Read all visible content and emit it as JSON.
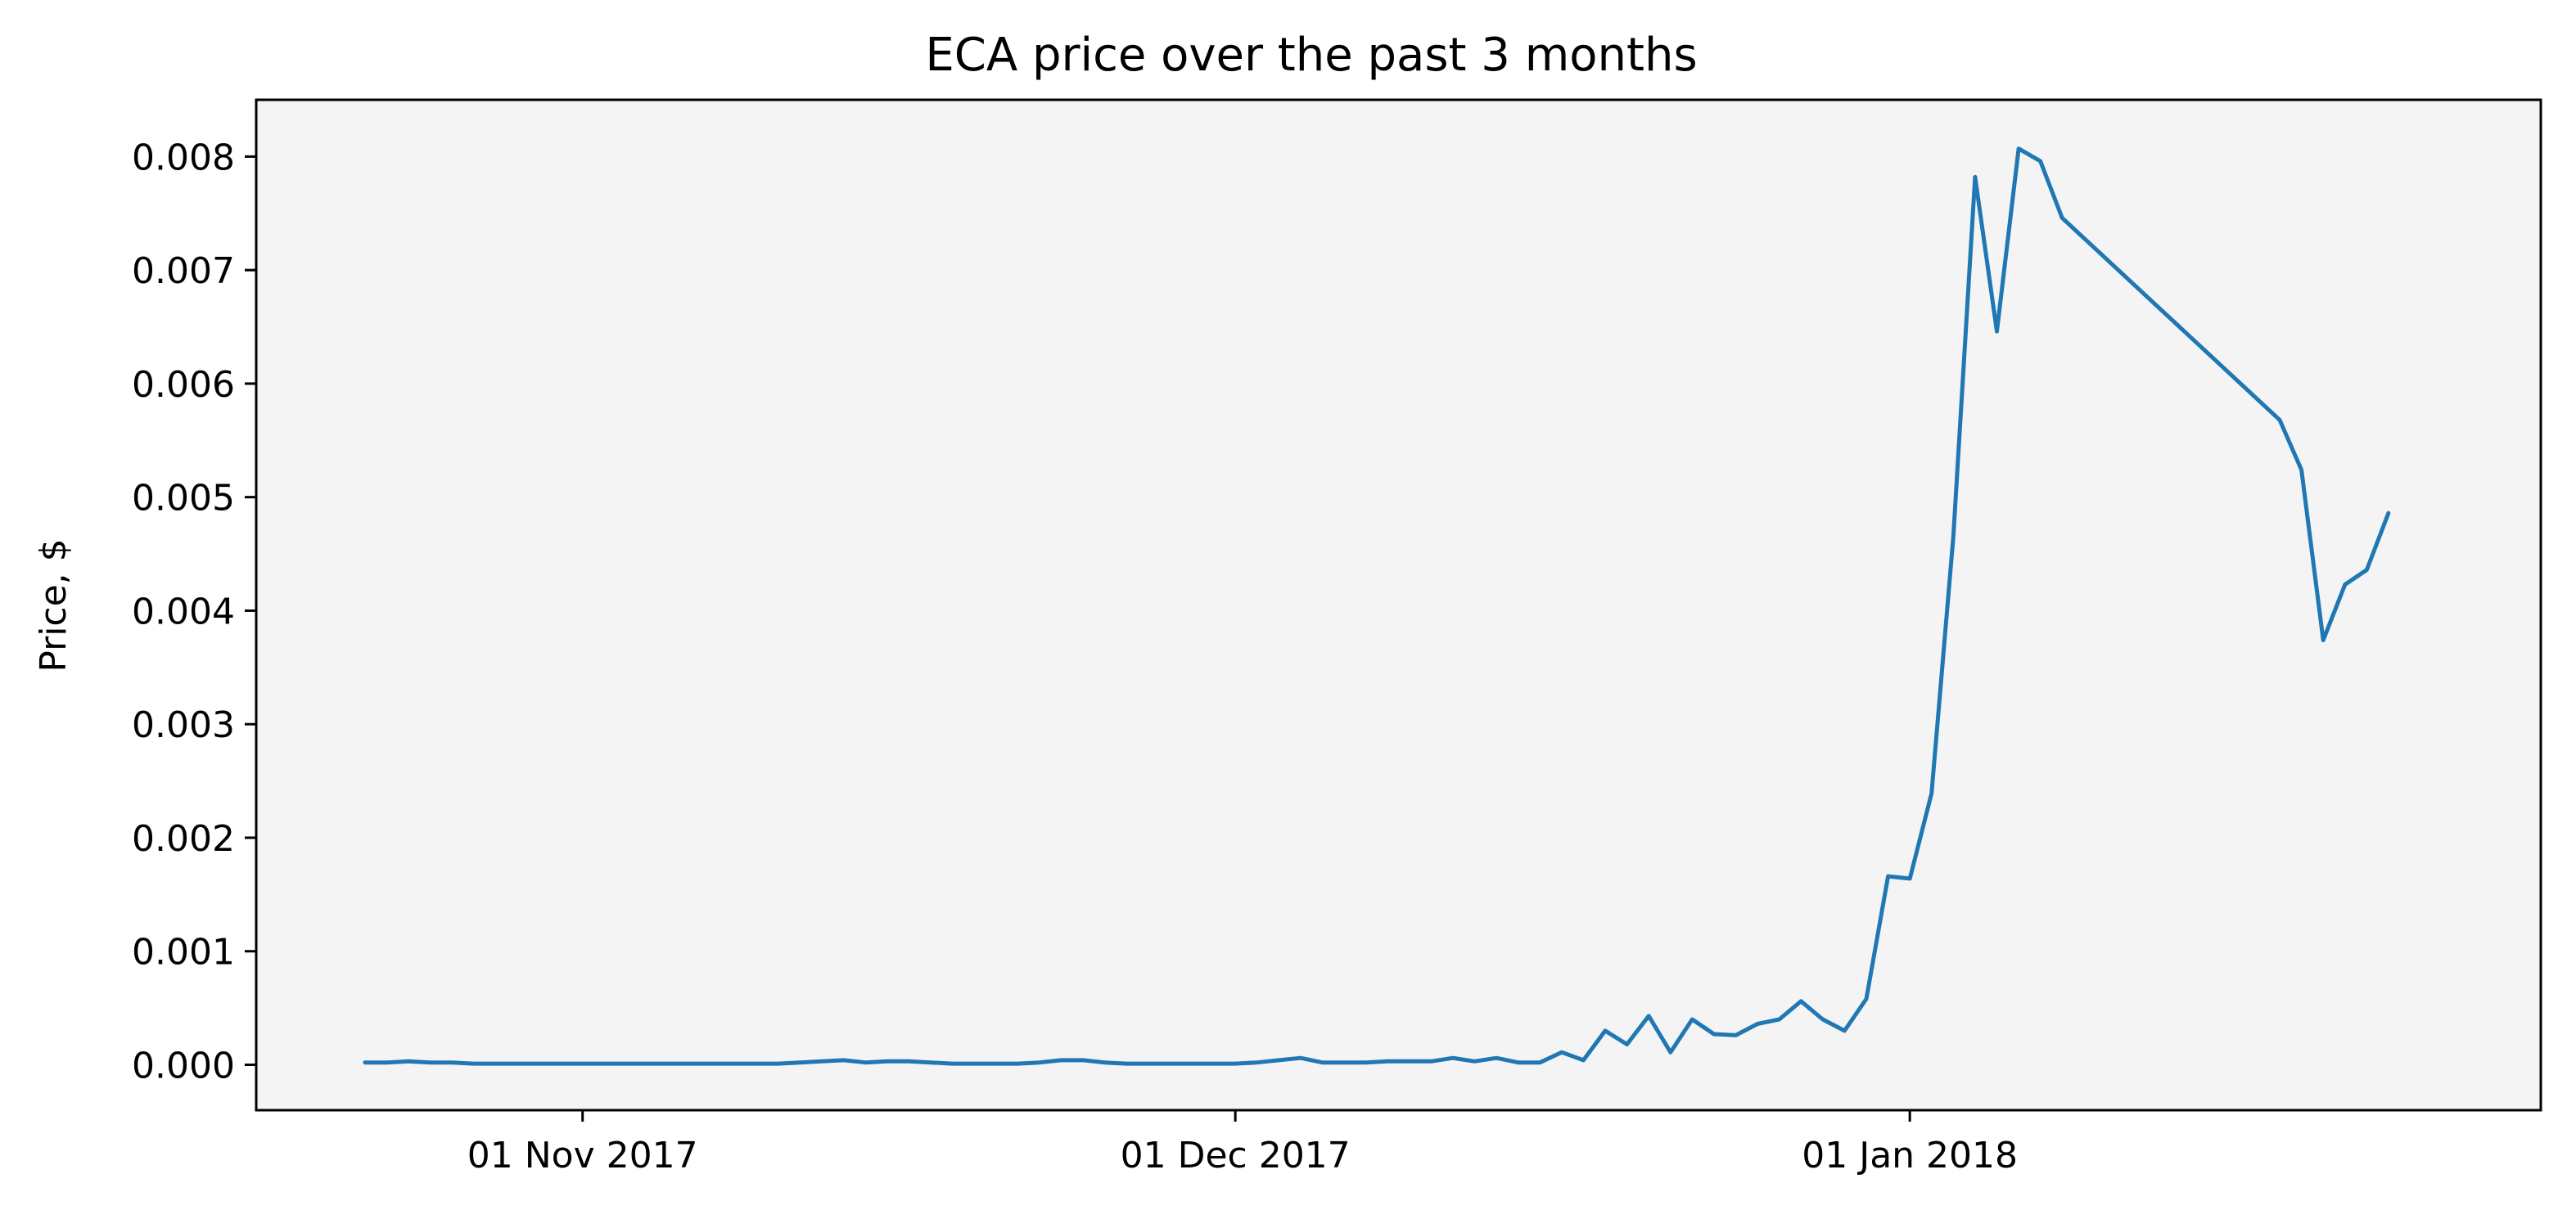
{
  "chart_data": {
    "type": "line",
    "title": "ECA price over the past 3 months",
    "xlabel": "",
    "ylabel": "Price, $",
    "xlim": [
      "2017-10-17",
      "2018-01-30"
    ],
    "ylim": [
      -0.0004,
      0.0085
    ],
    "grid": false,
    "legend": "none",
    "background": "#f4f4f4",
    "line_color": "#1f77b4",
    "x_ticks": [
      {
        "date": "2017-11-01",
        "label": "01 Nov 2017"
      },
      {
        "date": "2017-12-01",
        "label": "01 Dec 2017"
      },
      {
        "date": "2018-01-01",
        "label": "01 Jan 2018"
      }
    ],
    "y_ticks": [
      {
        "value": 0.0,
        "label": "0.000"
      },
      {
        "value": 0.001,
        "label": "0.001"
      },
      {
        "value": 0.002,
        "label": "0.002"
      },
      {
        "value": 0.003,
        "label": "0.003"
      },
      {
        "value": 0.004,
        "label": "0.004"
      },
      {
        "value": 0.005,
        "label": "0.005"
      },
      {
        "value": 0.006,
        "label": "0.006"
      },
      {
        "value": 0.007,
        "label": "0.007"
      },
      {
        "value": 0.008,
        "label": "0.008"
      }
    ],
    "series": [
      {
        "x": [
          "2017-10-22",
          "2017-10-23",
          "2017-10-24",
          "2017-10-25",
          "2017-10-26",
          "2017-10-27",
          "2017-10-28",
          "2017-10-29",
          "2017-10-30",
          "2017-10-31",
          "2017-11-01",
          "2017-11-02",
          "2017-11-03",
          "2017-11-04",
          "2017-11-05",
          "2017-11-06",
          "2017-11-07",
          "2017-11-08",
          "2017-11-09",
          "2017-11-10",
          "2017-11-11",
          "2017-11-12",
          "2017-11-13",
          "2017-11-14",
          "2017-11-15",
          "2017-11-16",
          "2017-11-17",
          "2017-11-18",
          "2017-11-19",
          "2017-11-20",
          "2017-11-21",
          "2017-11-22",
          "2017-11-23",
          "2017-11-24",
          "2017-11-25",
          "2017-11-26",
          "2017-11-27",
          "2017-11-28",
          "2017-11-29",
          "2017-11-30",
          "2017-12-01",
          "2017-12-02",
          "2017-12-03",
          "2017-12-04",
          "2017-12-05",
          "2017-12-06",
          "2017-12-07",
          "2017-12-08",
          "2017-12-09",
          "2017-12-10",
          "2017-12-11",
          "2017-12-12",
          "2017-12-13",
          "2017-12-14",
          "2017-12-15",
          "2017-12-16",
          "2017-12-17",
          "2017-12-18",
          "2017-12-19",
          "2017-12-20",
          "2017-12-21",
          "2017-12-22",
          "2017-12-23",
          "2017-12-24",
          "2017-12-25",
          "2017-12-26",
          "2017-12-27",
          "2017-12-28",
          "2017-12-29",
          "2017-12-30",
          "2017-12-31",
          "2018-01-01",
          "2018-01-02",
          "2018-01-03",
          "2018-01-04",
          "2018-01-05",
          "2018-01-06",
          "2018-01-07",
          "2018-01-08",
          "2018-01-18",
          "2018-01-19",
          "2018-01-20",
          "2018-01-21",
          "2018-01-22",
          "2018-01-23"
        ],
        "y": [
          2e-05,
          2e-05,
          3e-05,
          2e-05,
          2e-05,
          1e-05,
          1e-05,
          1e-05,
          1e-05,
          1e-05,
          1e-05,
          1e-05,
          1e-05,
          1e-05,
          1e-05,
          1e-05,
          1e-05,
          1e-05,
          1e-05,
          1e-05,
          2e-05,
          3e-05,
          4e-05,
          2e-05,
          3e-05,
          3e-05,
          2e-05,
          1e-05,
          1e-05,
          1e-05,
          1e-05,
          2e-05,
          4e-05,
          4e-05,
          2e-05,
          1e-05,
          1e-05,
          1e-05,
          1e-05,
          1e-05,
          1e-05,
          2e-05,
          4e-05,
          6e-05,
          2e-05,
          2e-05,
          2e-05,
          3e-05,
          3e-05,
          3e-05,
          6e-05,
          3e-05,
          6e-05,
          2e-05,
          2e-05,
          0.00011,
          4e-05,
          0.0003,
          0.00018,
          0.00043,
          0.00011,
          0.0004,
          0.00027,
          0.00026,
          0.00036,
          0.0004,
          0.00056,
          0.0004,
          0.0003,
          0.00058,
          0.00166,
          0.00164,
          0.00239,
          0.00465,
          0.00782,
          0.00646,
          0.00807,
          0.00796,
          0.00746,
          0.00568,
          0.00524,
          0.00374,
          0.00423,
          0.00436,
          0.00486
        ]
      }
    ]
  }
}
